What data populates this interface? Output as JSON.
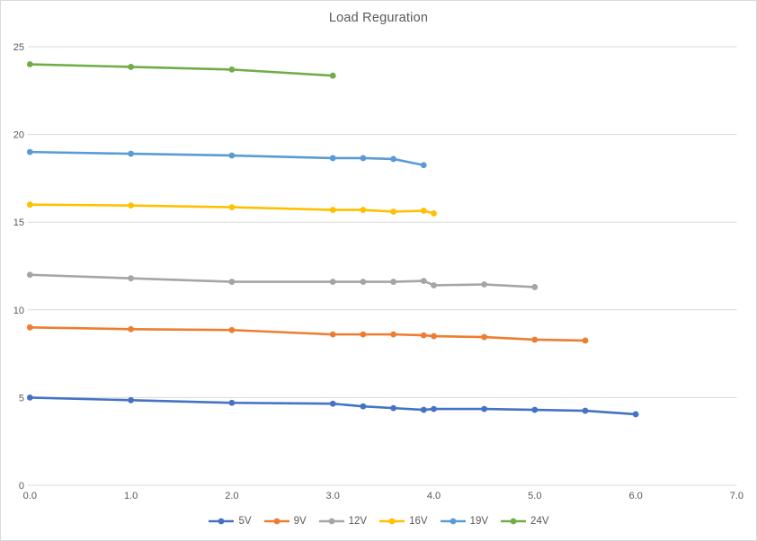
{
  "chart_data": {
    "type": "line",
    "title": "Load Reguration",
    "xlabel": "",
    "ylabel": "",
    "xlim": [
      0,
      7
    ],
    "ylim": [
      0,
      25
    ],
    "grid": "horizontal",
    "legend_position": "bottom",
    "marker": "circle",
    "text_color": "#595959",
    "grid_color": "#d9d9d9",
    "background_color": "#ffffff",
    "x_ticks": [
      0,
      1,
      2,
      3,
      4,
      5,
      6,
      7
    ],
    "x_tick_labels": [
      "0.0",
      "1.0",
      "2.0",
      "3.0",
      "4.0",
      "5.0",
      "6.0",
      "7.0"
    ],
    "y_ticks": [
      0,
      5,
      10,
      15,
      20,
      25
    ],
    "y_tick_labels": [
      "0",
      "5",
      "10",
      "15",
      "20",
      "25"
    ],
    "series": [
      {
        "name": "5V",
        "color": "#4472C4",
        "x": [
          0,
          1,
          2,
          3,
          3.3,
          3.6,
          3.9,
          4,
          4.5,
          5,
          5.5,
          6
        ],
        "y": [
          5.0,
          4.85,
          4.7,
          4.65,
          4.5,
          4.4,
          4.3,
          4.35,
          4.35,
          4.3,
          4.25,
          4.05
        ]
      },
      {
        "name": "9V",
        "color": "#ED7D31",
        "x": [
          0,
          1,
          2,
          3,
          3.3,
          3.6,
          3.9,
          4,
          4.5,
          5,
          5.5
        ],
        "y": [
          9.0,
          8.9,
          8.85,
          8.6,
          8.6,
          8.6,
          8.55,
          8.5,
          8.45,
          8.3,
          8.25
        ]
      },
      {
        "name": "12V",
        "color": "#A5A5A5",
        "x": [
          0,
          1,
          2,
          3,
          3.3,
          3.6,
          3.9,
          4,
          4.5,
          5
        ],
        "y": [
          12.0,
          11.8,
          11.6,
          11.6,
          11.6,
          11.6,
          11.65,
          11.4,
          11.45,
          11.3
        ]
      },
      {
        "name": "16V",
        "color": "#FFC000",
        "x": [
          0,
          1,
          2,
          3,
          3.3,
          3.6,
          3.9,
          4
        ],
        "y": [
          16.0,
          15.95,
          15.85,
          15.7,
          15.7,
          15.6,
          15.65,
          15.5
        ]
      },
      {
        "name": "19V",
        "color": "#5B9BD5",
        "x": [
          0,
          1,
          2,
          3,
          3.3,
          3.6,
          3.9
        ],
        "y": [
          19.0,
          18.9,
          18.8,
          18.65,
          18.65,
          18.6,
          18.25
        ]
      },
      {
        "name": "24V",
        "color": "#70AD47",
        "x": [
          0,
          1,
          2,
          3
        ],
        "y": [
          24.0,
          23.85,
          23.7,
          23.35
        ]
      }
    ]
  }
}
